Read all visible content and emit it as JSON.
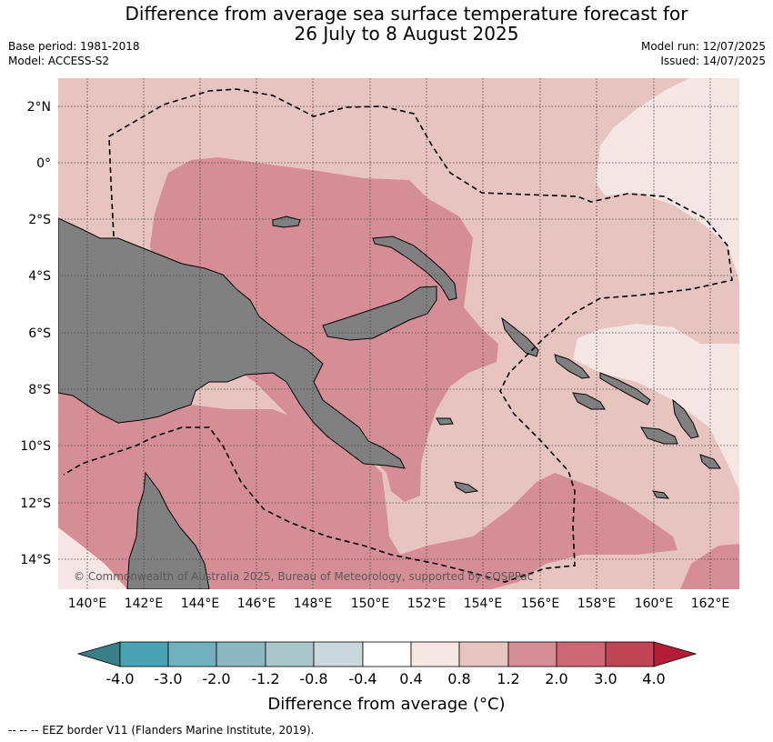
{
  "header": {
    "title_line1": "Difference from average sea surface temperature forecast for",
    "title_line2": "26 July to 8 August 2025",
    "base_period": "Base period: 1981-2018",
    "model": "Model: ACCESS-S2",
    "model_run": "Model run: 12/07/2025",
    "issued": "Issued: 14/07/2025"
  },
  "map": {
    "lat_labels": [
      "2°N",
      "0°",
      "2°S",
      "4°S",
      "6°S",
      "8°S",
      "10°S",
      "12°S",
      "14°S"
    ],
    "lon_labels": [
      "140°E",
      "142°E",
      "144°E",
      "146°E",
      "148°E",
      "150°E",
      "152°E",
      "154°E",
      "156°E",
      "158°E",
      "160°E",
      "162°E"
    ],
    "copyright": "© Commonwealth of Australia 2025, Bureau of Meteorology, supported by COSPPac",
    "colors": {
      "land": "#808080",
      "band_0_4_0_8": "#f5e6e4",
      "band_0_8_1_2": "#e8c4c1",
      "band_1_2_2_0": "#d68e96",
      "band_2_0_3_0": "#cc6773"
    }
  },
  "colorbar": {
    "title": "Difference from average (°C)",
    "labels": [
      "-4.0",
      "-3.0",
      "-2.0",
      "-1.2",
      "-0.8",
      "-0.4",
      "0.4",
      "0.8",
      "1.2",
      "2.0",
      "3.0",
      "4.0"
    ],
    "colors": [
      "#3a7e88",
      "#4aa3b3",
      "#6fb1bf",
      "#8db8c2",
      "#a9c7cb",
      "#c9d8dd",
      "#ffffff",
      "#f5e6e4",
      "#e8c4c1",
      "#d68e96",
      "#cc6773",
      "#c04555",
      "#b51c38"
    ]
  },
  "footer": {
    "eez_note": "--  --  -- EEZ border V11 (Flanders Marine Institute, 2019)."
  }
}
